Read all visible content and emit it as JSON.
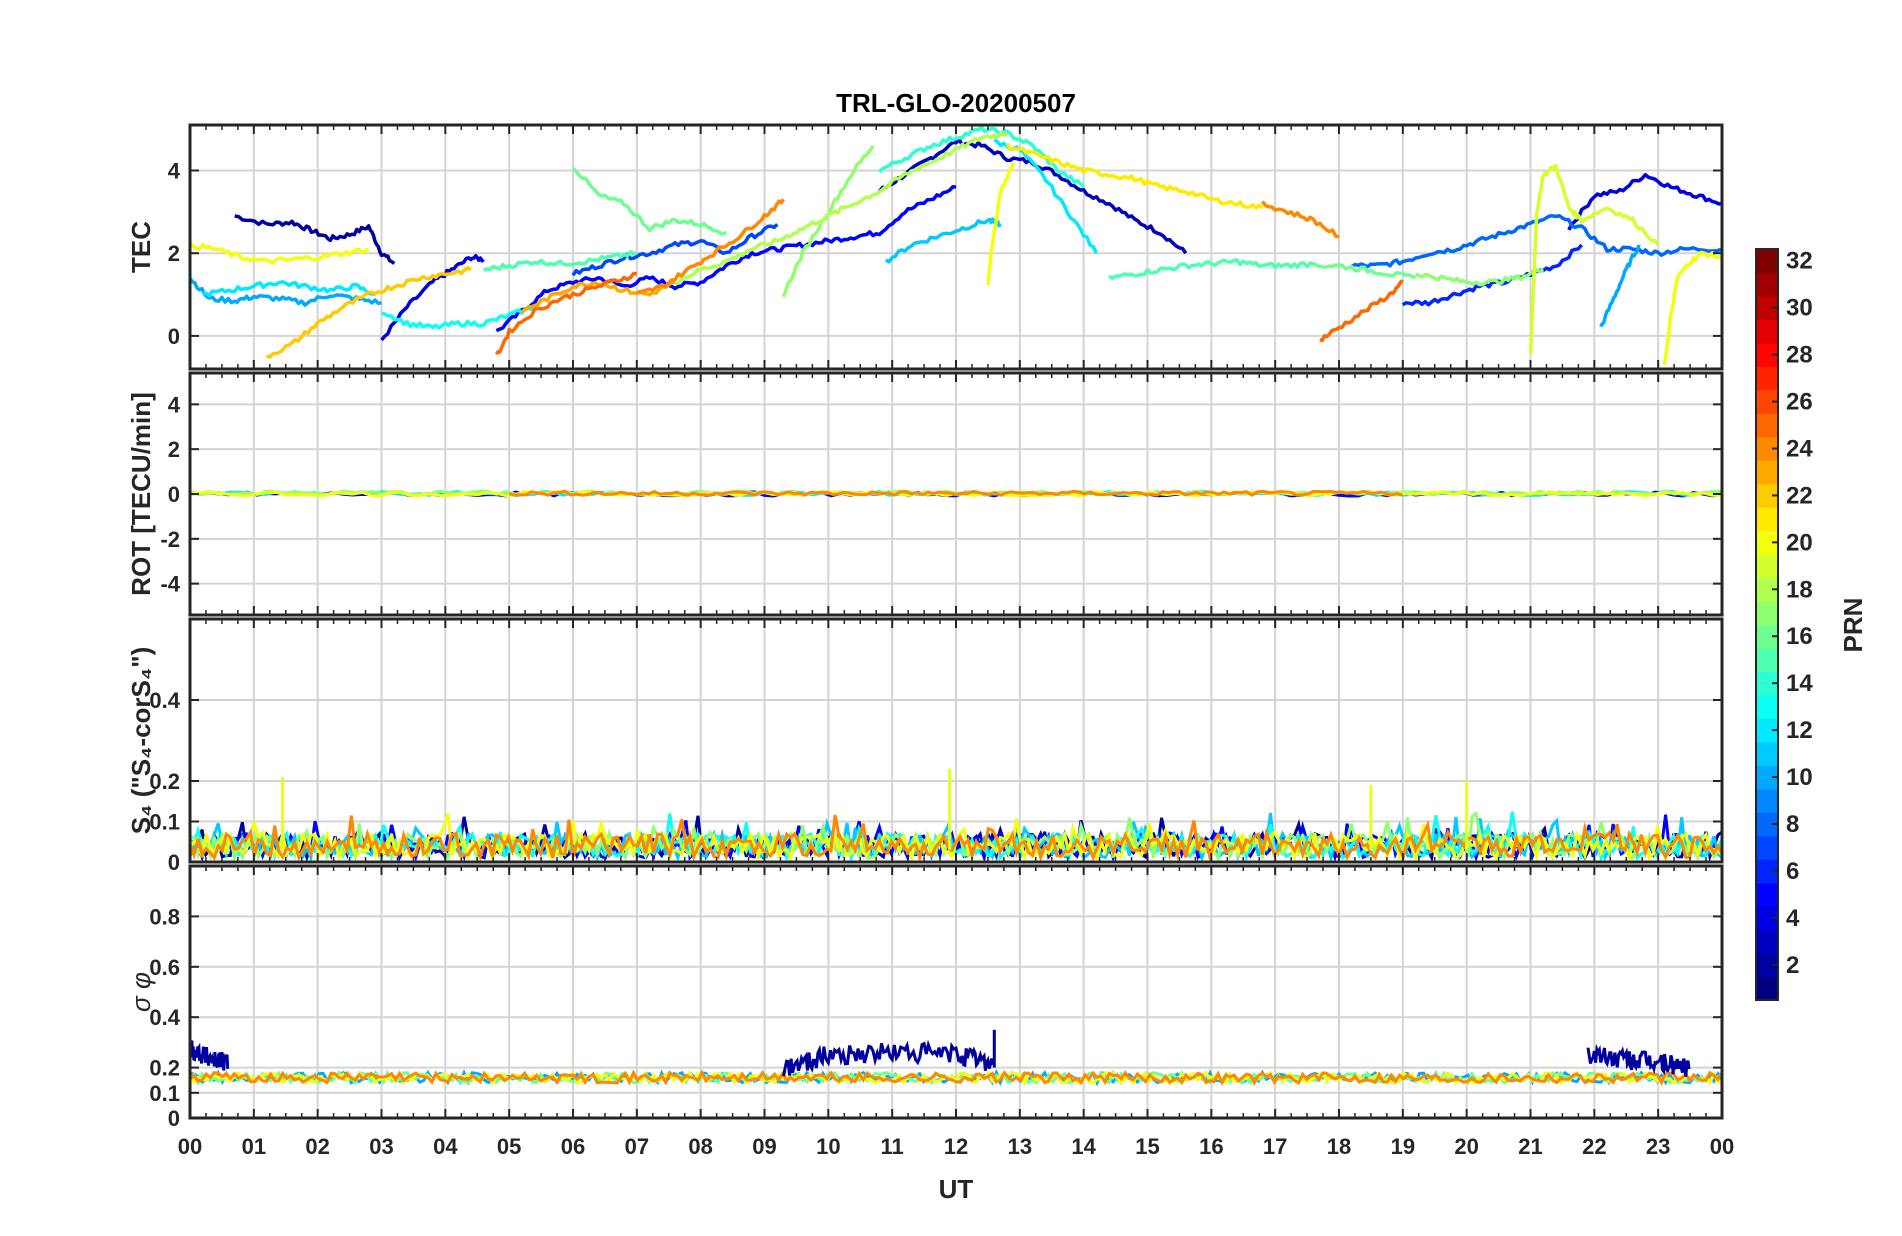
{
  "chart_data": {
    "type": "line",
    "title": "TRL-GLO-20200507",
    "xlabel": "UT",
    "x_ticks": [
      "00",
      "01",
      "02",
      "03",
      "04",
      "05",
      "06",
      "07",
      "08",
      "09",
      "10",
      "11",
      "12",
      "13",
      "14",
      "15",
      "16",
      "17",
      "18",
      "19",
      "20",
      "21",
      "22",
      "23",
      "00"
    ],
    "xlim": [
      0,
      24
    ],
    "panels": [
      {
        "name": "tec",
        "ylabel": "TEC",
        "ylim": [
          -0.8,
          5.1
        ],
        "yticks": [
          0,
          2,
          4
        ],
        "ytick_labels": [
          "0",
          "2",
          "4"
        ],
        "series": [
          {
            "name": "PRN 2",
            "prn": 2,
            "x": [
              0.7,
              1.2,
              1.6,
              1.9,
              2.2,
              2.5,
              2.8,
              3.0,
              3.2
            ],
            "y": [
              2.9,
              2.7,
              2.75,
              2.55,
              2.35,
              2.45,
              2.65,
              2.0,
              1.75
            ]
          },
          {
            "name": "PRN 3",
            "prn": 3,
            "x": [
              10.8,
              11.2,
              11.6,
              12.0,
              12.4,
              12.8,
              13.2,
              13.6,
              14.0,
              14.4,
              14.8,
              15.2,
              15.6
            ],
            "y": [
              3.5,
              3.9,
              4.3,
              4.7,
              4.6,
              4.3,
              4.2,
              3.9,
              3.5,
              3.2,
              2.8,
              2.5,
              2.0
            ]
          },
          {
            "name": "PRN 4",
            "prn": 4,
            "x": [
              3.0,
              3.4,
              3.8,
              4.1,
              4.4,
              4.6
            ],
            "y": [
              -0.1,
              0.7,
              1.3,
              1.6,
              1.9,
              1.85
            ]
          },
          {
            "name": "PRN 4b",
            "prn": 4,
            "x": [
              21.6,
              22.0,
              22.4,
              22.8,
              23.2,
              23.6,
              24.0
            ],
            "y": [
              2.6,
              3.4,
              3.5,
              3.9,
              3.6,
              3.4,
              3.2
            ]
          },
          {
            "name": "PRN 5",
            "prn": 5,
            "x": [
              4.8,
              5.2,
              5.6,
              6.0,
              6.4,
              6.8,
              7.2,
              7.6,
              8.0,
              8.4,
              8.8,
              9.2,
              9.6,
              10.0,
              10.4,
              10.8,
              11.2,
              11.6,
              12.0
            ],
            "y": [
              0.1,
              0.6,
              1.1,
              1.3,
              1.4,
              1.2,
              1.4,
              1.2,
              1.3,
              1.7,
              2.0,
              2.1,
              2.2,
              2.3,
              2.4,
              2.5,
              3.0,
              3.3,
              3.6
            ]
          },
          {
            "name": "PRN 6",
            "prn": 6,
            "x": [
              19.0,
              19.4,
              19.8,
              20.2,
              20.6,
              21.0,
              21.4,
              21.8
            ],
            "y": [
              0.8,
              0.8,
              1.0,
              1.2,
              1.3,
              1.5,
              1.7,
              2.2
            ]
          },
          {
            "name": "PRN 7",
            "prn": 7,
            "x": [
              6.0,
              6.4,
              6.8,
              7.2,
              7.6,
              8.0,
              8.4,
              8.8,
              9.2
            ],
            "y": [
              1.5,
              1.7,
              1.9,
              2.0,
              2.2,
              2.3,
              2.0,
              2.4,
              2.7
            ]
          },
          {
            "name": "PRN 8",
            "prn": 8,
            "x": [
              18.2,
              18.6,
              19.0,
              19.4,
              19.8,
              20.2,
              20.6,
              21.0,
              21.4,
              21.8,
              22.2,
              22.6,
              23.0,
              23.4,
              24.0
            ],
            "y": [
              1.7,
              1.7,
              1.8,
              2.0,
              2.1,
              2.3,
              2.5,
              2.7,
              2.9,
              2.6,
              2.1,
              2.1,
              2.0,
              2.1,
              2.1
            ]
          },
          {
            "name": "PRN 10",
            "prn": 10,
            "x": [
              0.0,
              0.3,
              0.7,
              1.0,
              1.4,
              1.8,
              2.2,
              2.6,
              3.0
            ],
            "y": [
              1.4,
              0.9,
              0.85,
              0.95,
              0.9,
              0.8,
              1.0,
              0.9,
              0.8
            ]
          },
          {
            "name": "PRN 10b",
            "prn": 10,
            "x": [
              22.1,
              22.3,
              22.5,
              22.7
            ],
            "y": [
              0.2,
              0.9,
              1.6,
              2.2
            ]
          },
          {
            "name": "PRN 11",
            "prn": 11,
            "x": [
              10.9,
              11.3,
              11.7,
              12.1,
              12.5,
              12.7
            ],
            "y": [
              1.8,
              2.2,
              2.4,
              2.6,
              2.8,
              2.7
            ]
          },
          {
            "name": "PRN 12",
            "prn": 12,
            "x": [
              0.2,
              0.6,
              1.0,
              1.4,
              1.8,
              2.2,
              2.6,
              2.9
            ],
            "y": [
              1.0,
              1.1,
              1.2,
              1.3,
              1.2,
              1.1,
              1.2,
              1.0
            ]
          },
          {
            "name": "PRN 12b",
            "prn": 12,
            "x": [
              12.6,
              13.0,
              13.4,
              13.8,
              14.2
            ],
            "y": [
              4.7,
              4.5,
              3.8,
              2.9,
              2.0
            ]
          },
          {
            "name": "PRN 13",
            "prn": 13,
            "x": [
              3.0,
              3.4,
              3.8,
              4.2,
              4.6,
              5.0,
              5.4
            ],
            "y": [
              0.6,
              0.3,
              0.2,
              0.3,
              0.3,
              0.5,
              0.7
            ]
          },
          {
            "name": "PRN 14",
            "prn": 14,
            "x": [
              10.8,
              11.2,
              11.6,
              12.0,
              12.4,
              12.8,
              13.2,
              13.6,
              14.0
            ],
            "y": [
              4.0,
              4.3,
              4.6,
              4.8,
              5.0,
              4.9,
              4.6,
              4.0,
              3.6
            ]
          },
          {
            "name": "PRN 15",
            "prn": 15,
            "x": [
              4.6,
              5.0,
              5.4,
              5.8,
              6.2,
              6.6,
              7.0
            ],
            "y": [
              1.6,
              1.7,
              1.8,
              1.75,
              1.8,
              1.9,
              2.0
            ]
          },
          {
            "name": "PRN 15b",
            "prn": 15,
            "x": [
              14.4,
              14.8,
              15.2,
              15.6,
              16.0,
              16.4,
              16.8,
              17.2,
              17.6
            ],
            "y": [
              1.4,
              1.5,
              1.6,
              1.7,
              1.75,
              1.8,
              1.7,
              1.7,
              1.75
            ]
          },
          {
            "name": "PRN 16",
            "prn": 16,
            "x": [
              6.0,
              6.4,
              6.8,
              7.2,
              7.6,
              8.0,
              8.4
            ],
            "y": [
              4.1,
              3.4,
              3.2,
              2.6,
              2.8,
              2.7,
              2.5
            ]
          },
          {
            "name": "PRN 16b",
            "prn": 16,
            "x": [
              17.6,
              18.0,
              18.4,
              18.8,
              19.2
            ],
            "y": [
              1.7,
              1.7,
              1.6,
              1.5,
              1.4
            ]
          },
          {
            "name": "PRN 17",
            "prn": 17,
            "x": [
              9.3,
              9.6,
              10.0,
              10.4,
              10.7
            ],
            "y": [
              1.0,
              2.0,
              3.0,
              4.0,
              4.6
            ]
          },
          {
            "name": "PRN 17b",
            "prn": 17,
            "x": [
              19.2,
              19.6,
              20.0,
              20.4,
              20.8,
              21.2
            ],
            "y": [
              1.5,
              1.4,
              1.3,
              1.3,
              1.4,
              1.6
            ]
          },
          {
            "name": "PRN 18",
            "prn": 18,
            "x": [
              7.6,
              8.0,
              8.4,
              8.8,
              9.2,
              9.6,
              10.0,
              10.4,
              10.8,
              11.2,
              11.6,
              12.0,
              12.4,
              12.8
            ],
            "y": [
              1.3,
              1.6,
              1.8,
              2.1,
              2.3,
              2.6,
              2.9,
              3.2,
              3.5,
              3.9,
              4.2,
              4.5,
              4.8,
              4.9
            ]
          },
          {
            "name": "PRN 19",
            "prn": 19,
            "x": [
              21.0,
              21.1,
              21.2,
              21.4,
              21.6,
              21.8,
              22.2,
              22.6,
              23.0
            ],
            "y": [
              -0.4,
              3.0,
              3.9,
              4.1,
              3.1,
              2.8,
              3.1,
              2.8,
              2.2
            ]
          },
          {
            "name": "PRN 20",
            "prn": 20,
            "x": [
              0.0,
              0.4,
              0.8,
              1.2,
              1.6,
              2.0,
              2.4,
              2.8
            ],
            "y": [
              2.2,
              2.1,
              1.9,
              1.8,
              1.85,
              1.9,
              2.0,
              2.1
            ]
          },
          {
            "name": "PRN 20b",
            "prn": 20,
            "x": [
              12.5,
              12.55,
              12.7,
              12.9
            ],
            "y": [
              1.2,
              2.0,
              3.5,
              4.2
            ]
          },
          {
            "name": "PRN 20c",
            "prn": 20,
            "x": [
              23.1,
              23.2,
              23.3,
              23.5,
              23.7,
              24.0
            ],
            "y": [
              -0.7,
              0.5,
              1.4,
              1.8,
              2.0,
              1.9
            ]
          },
          {
            "name": "PRN 21",
            "prn": 21,
            "x": [
              12.8,
              13.2,
              13.6,
              14.0,
              14.4,
              14.8,
              15.2,
              15.6,
              16.0,
              16.4,
              16.8
            ],
            "y": [
              4.6,
              4.4,
              4.2,
              4.0,
              3.9,
              3.8,
              3.6,
              3.5,
              3.3,
              3.2,
              3.1
            ]
          },
          {
            "name": "PRN 22",
            "prn": 22,
            "x": [
              1.2,
              1.6,
              2.0,
              2.4,
              2.8,
              3.2,
              3.6,
              4.0,
              4.4
            ],
            "y": [
              -0.5,
              -0.2,
              0.3,
              0.7,
              1.0,
              1.2,
              1.4,
              1.5,
              1.6
            ]
          },
          {
            "name": "PRN 23",
            "prn": 23,
            "x": [
              5.2,
              5.6,
              6.0,
              6.4,
              6.8,
              7.2,
              7.6
            ],
            "y": [
              0.6,
              0.9,
              1.2,
              1.3,
              1.1,
              1.0,
              1.3
            ]
          },
          {
            "name": "PRN 24",
            "prn": 24,
            "x": [
              7.0,
              7.4,
              7.8,
              8.2,
              8.6,
              9.0,
              9.3
            ],
            "y": [
              1.0,
              1.2,
              1.6,
              2.0,
              2.4,
              2.9,
              3.3
            ]
          },
          {
            "name": "PRN 24b",
            "prn": 24,
            "x": [
              16.8,
              17.2,
              17.6,
              18.0
            ],
            "y": [
              3.2,
              3.0,
              2.8,
              2.4
            ]
          },
          {
            "name": "PRN 25",
            "prn": 25,
            "x": [
              4.8,
              5.0,
              5.4,
              5.8,
              6.2,
              6.6,
              7.0
            ],
            "y": [
              -0.5,
              0.1,
              0.6,
              0.9,
              1.1,
              1.3,
              1.5
            ]
          },
          {
            "name": "PRN 25b",
            "prn": 25,
            "x": [
              17.7,
              18.0,
              18.4,
              18.8,
              19.0
            ],
            "y": [
              -0.1,
              0.2,
              0.6,
              1.0,
              1.3
            ]
          }
        ]
      },
      {
        "name": "rot",
        "ylabel": "ROT [TECU/min]",
        "ylim": [
          -5.4,
          5.4
        ],
        "yticks": [
          -4,
          -2,
          0,
          2,
          4
        ],
        "ytick_labels": [
          "-4",
          "-2",
          "0",
          "2",
          "4"
        ],
        "series": [
          {
            "name": "ROT PRN 5",
            "prn": 5,
            "x": [
              0,
              24
            ],
            "y": [
              0.0,
              0.0
            ]
          },
          {
            "name": "ROT PRN 12",
            "prn": 12,
            "x": [
              0,
              24
            ],
            "y": [
              0.02,
              0.02
            ]
          },
          {
            "name": "ROT PRN 17",
            "prn": 17,
            "x": [
              0,
              24
            ],
            "y": [
              0.05,
              0.05
            ]
          },
          {
            "name": "ROT PRN 20",
            "prn": 20,
            "x": [
              0,
              24
            ],
            "y": [
              0.01,
              0.01
            ]
          },
          {
            "name": "ROT PRN 24",
            "prn": 24,
            "x": [
              5,
              19
            ],
            "y": [
              0.03,
              0.03
            ]
          }
        ]
      },
      {
        "name": "s4",
        "ylabel": "S₄ (\"S₄-corS₄\")",
        "ylim": [
          0,
          0.6
        ],
        "yticks": [
          0,
          0.1,
          0.2,
          0.4
        ],
        "ytick_labels": [
          "0",
          "0.1",
          "0.2",
          "0.4"
        ],
        "typical_range": [
          0.0,
          0.1
        ],
        "max_values": [
          {
            "x": 1.45,
            "y": 0.21
          },
          {
            "x": 11.9,
            "y": 0.23
          },
          {
            "x": 20.0,
            "y": 0.2
          },
          {
            "x": 18.5,
            "y": 0.19
          }
        ]
      },
      {
        "name": "sigma_phi",
        "ylabel": "σ φ",
        "ylim": [
          0,
          1.0
        ],
        "yticks": [
          0,
          0.1,
          0.2,
          0.4,
          0.6,
          0.8
        ],
        "ytick_labels": [
          "0",
          "0.1",
          "0.2",
          "0.4",
          "0.6",
          "0.8"
        ],
        "series": [
          {
            "name": "sigma PRN 2 (day)",
            "prn": 2,
            "x": [
              9.3,
              10.0,
              11.0,
              12.0,
              12.6
            ],
            "y": [
              0.2,
              0.25,
              0.26,
              0.25,
              0.22
            ]
          },
          {
            "name": "sigma PRN 2 (night)",
            "prn": 2,
            "x": [
              21.9,
              22.5,
              23.0,
              23.5
            ],
            "y": [
              0.25,
              0.23,
              0.22,
              0.2
            ]
          },
          {
            "name": "sigma PRN 2 (start)",
            "prn": 2,
            "x": [
              0.0,
              0.3,
              0.6
            ],
            "y": [
              0.28,
              0.24,
              0.22
            ]
          }
        ],
        "typical_range": [
          0.12,
          0.2
        ],
        "peak": {
          "x": 12.6,
          "y": 0.35
        }
      }
    ],
    "colorbar": {
      "label": "PRN",
      "range": [
        1,
        32
      ],
      "ticks": [
        "2",
        "4",
        "6",
        "8",
        "10",
        "12",
        "14",
        "16",
        "18",
        "20",
        "22",
        "24",
        "26",
        "28",
        "30",
        "32"
      ],
      "colormap": "jet"
    }
  }
}
